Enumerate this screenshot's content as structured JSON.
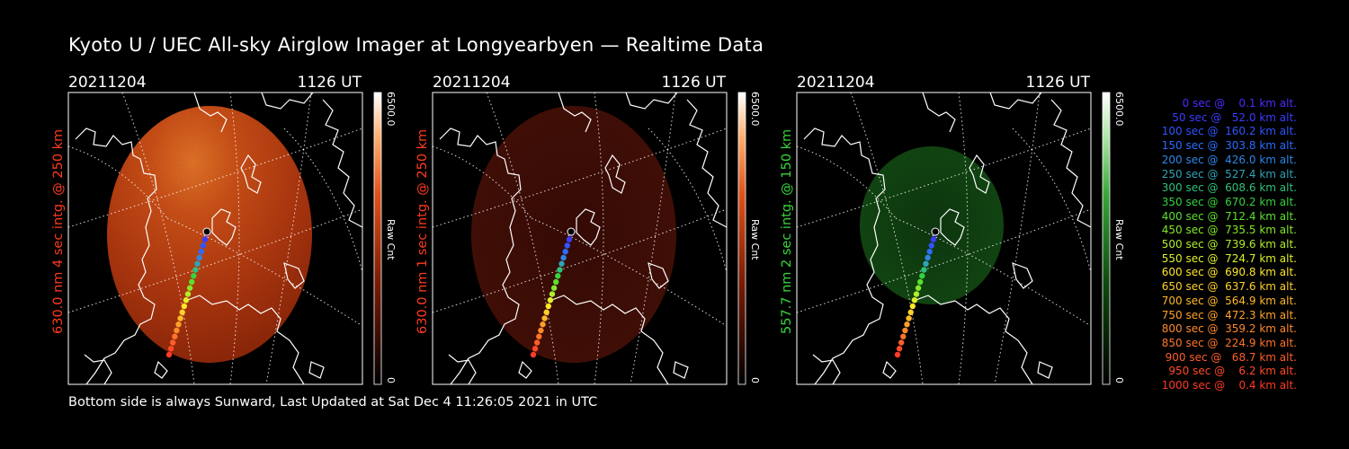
{
  "title": "Kyoto U / UEC All-sky Airglow Imager at Longyearbyen — Realtime Data",
  "footer": "Bottom side is always Sunward, Last Updated at Sat Dec  4 11:26:05 2021 in UTC",
  "colors": {
    "red_label": "#ff3b1f",
    "green_label": "#37d73a",
    "map_line": "#ffffff"
  },
  "chart_data": [
    {
      "type": "heatmap",
      "date": "20211204",
      "time": "1126 UT",
      "side_label": "630.0 nm 4 sec intg. @ 250 km",
      "colorbar": {
        "max": "6500.0",
        "min": "0",
        "label": "Raw Cnt",
        "scheme": "red"
      },
      "brightness": "bright"
    },
    {
      "type": "heatmap",
      "date": "20211204",
      "time": "1126 UT",
      "side_label": "630.0 nm 1 sec intg. @ 250 km",
      "colorbar": {
        "max": "6500.0",
        "min": "0",
        "label": "Raw Cnt",
        "scheme": "red"
      },
      "brightness": "dim"
    },
    {
      "type": "heatmap",
      "date": "20211204",
      "time": "1126 UT",
      "side_label": "557.7 nm 2 sec intg. @ 150 km",
      "colorbar": {
        "max": "6500.0",
        "min": "0",
        "label": "Raw Cnt",
        "scheme": "green"
      },
      "brightness": "dim"
    }
  ],
  "trajectory_legend": [
    {
      "text": "   0 sec @    0.1 km alt.",
      "color": "#4b2bff"
    },
    {
      "text": "  50 sec @   52.0 km alt.",
      "color": "#3a3cff"
    },
    {
      "text": " 100 sec @  160.2 km alt.",
      "color": "#2f55ff"
    },
    {
      "text": " 150 sec @  303.8 km alt.",
      "color": "#2a6cff"
    },
    {
      "text": " 200 sec @  426.0 km alt.",
      "color": "#2d86e6"
    },
    {
      "text": " 250 sec @  527.4 km alt.",
      "color": "#2fa3b8"
    },
    {
      "text": " 300 sec @  608.6 km alt.",
      "color": "#2fc07a"
    },
    {
      "text": " 350 sec @  670.2 km alt.",
      "color": "#35d33c"
    },
    {
      "text": " 400 sec @  712.4 km alt.",
      "color": "#59e02c"
    },
    {
      "text": " 450 sec @  735.5 km alt.",
      "color": "#84e82a"
    },
    {
      "text": " 500 sec @  739.6 km alt.",
      "color": "#b1ee2a"
    },
    {
      "text": " 550 sec @  724.7 km alt.",
      "color": "#dff02a"
    },
    {
      "text": " 600 sec @  690.8 km alt.",
      "color": "#ffe62a"
    },
    {
      "text": " 650 sec @  637.6 km alt.",
      "color": "#ffd02a"
    },
    {
      "text": " 700 sec @  564.9 km alt.",
      "color": "#ffb82a"
    },
    {
      "text": " 750 sec @  472.3 km alt.",
      "color": "#ffa02a"
    },
    {
      "text": " 800 sec @  359.2 km alt.",
      "color": "#ff8a2a"
    },
    {
      "text": " 850 sec @  224.9 km alt.",
      "color": "#ff742a"
    },
    {
      "text": " 900 sec @   68.7 km alt.",
      "color": "#ff5e2a"
    },
    {
      "text": " 950 sec @    6.2 km alt.",
      "color": "#ff4a28"
    },
    {
      "text": "1000 sec @    0.4 km alt.",
      "color": "#ff3a26"
    }
  ]
}
